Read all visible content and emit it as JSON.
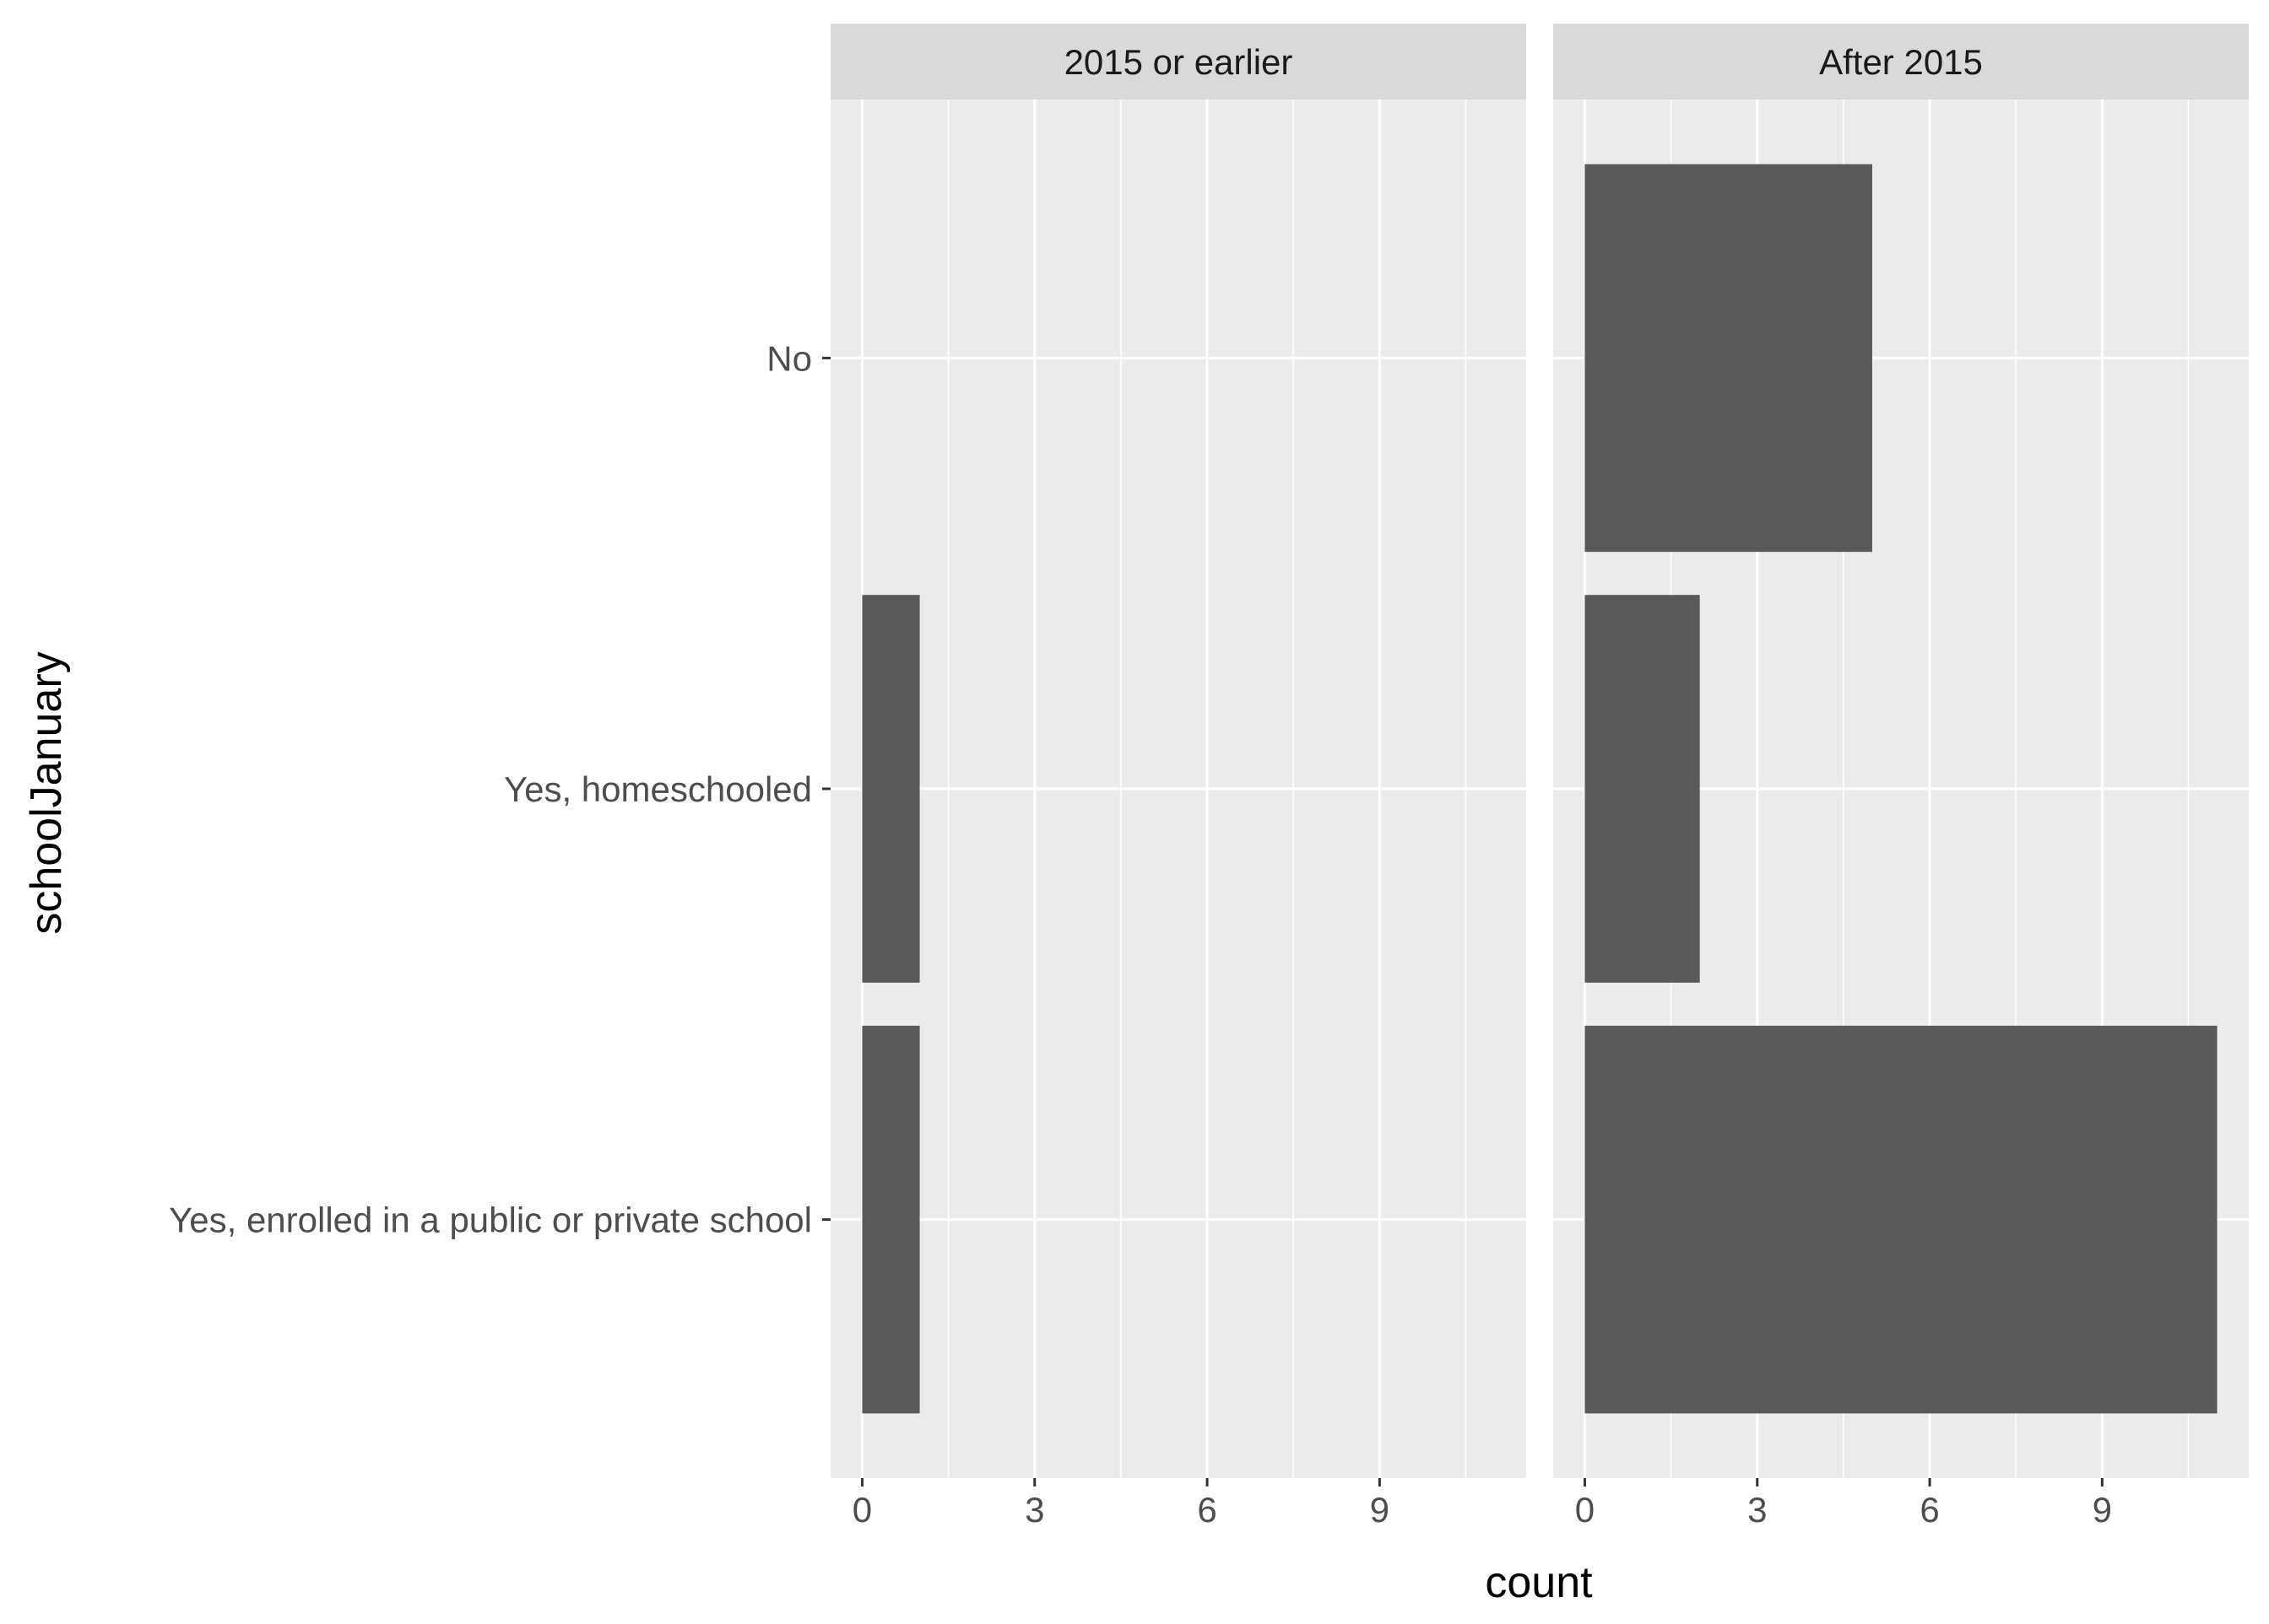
{
  "chart_data": {
    "type": "bar",
    "orientation": "horizontal",
    "facet_by": "year group",
    "categories": [
      "No",
      "Yes, homeschooled",
      "Yes, enrolled in a public or private school"
    ],
    "facets": [
      {
        "strip": "2015 or earlier",
        "values": [
          0,
          1,
          1
        ]
      },
      {
        "strip": "After 2015",
        "values": [
          5,
          2,
          11
        ]
      }
    ],
    "xlabel": "count",
    "ylabel": "schoolJanuary",
    "xlim": [
      -0.55,
      11.55
    ],
    "xticks": [
      0,
      3,
      6,
      9
    ],
    "grid": true,
    "legend": "none",
    "colors": {
      "bar": "#595959",
      "panel": "#ebebeb",
      "strip": "#d9d9d9",
      "gridline": "#ffffff",
      "axis_text": "#4d4d4d",
      "title_text": "#000000",
      "strip_text": "#1a1a1a"
    }
  }
}
